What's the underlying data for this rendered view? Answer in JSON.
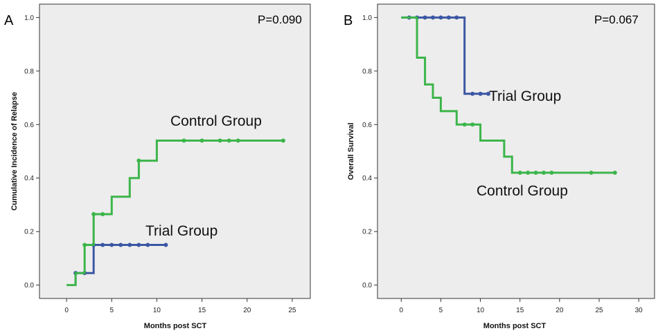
{
  "chart_data": [
    {
      "panel": "A",
      "type": "line",
      "subtype": "kaplan-meier step",
      "p_value": "P=0.090",
      "xlabel": "Months post SCT",
      "ylabel": "Cumulative Incidence of Relapse",
      "xlim": [
        -3,
        27
      ],
      "ylim": [
        -0.05,
        1.05
      ],
      "xticks": [
        0,
        5,
        10,
        15,
        20,
        25
      ],
      "xtick_labels": [
        "0",
        "5",
        "10",
        "15",
        "20",
        "25"
      ],
      "yticks": [
        0,
        0.2,
        0.4,
        0.6,
        0.8,
        1.0
      ],
      "ytick_labels": [
        "0.0",
        "0.2",
        "0.4",
        "0.6",
        "0.8",
        "1.0"
      ],
      "series": [
        {
          "name": "Trial Group",
          "label": "Trial Group",
          "color": "#3b57a3",
          "steps": [
            [
              1,
              0.0
            ],
            [
              1,
              0.045
            ],
            [
              3,
              0.045
            ],
            [
              3,
              0.15
            ],
            [
              11,
              0.15
            ]
          ],
          "censor_x": [
            1,
            2,
            3,
            4,
            5,
            6,
            7,
            8,
            9,
            11
          ]
        },
        {
          "name": "Control Group",
          "label": "Control Group",
          "color": "#3cb54a",
          "steps": [
            [
              0,
              0
            ],
            [
              1,
              0
            ],
            [
              1,
              0.045
            ],
            [
              2,
              0.045
            ],
            [
              2,
              0.15
            ],
            [
              3,
              0.15
            ],
            [
              3,
              0.265
            ],
            [
              5,
              0.265
            ],
            [
              5,
              0.33
            ],
            [
              7,
              0.33
            ],
            [
              7,
              0.4
            ],
            [
              8,
              0.4
            ],
            [
              8,
              0.465
            ],
            [
              10,
              0.465
            ],
            [
              10,
              0.54
            ],
            [
              24,
              0.54
            ]
          ],
          "censor_x": [
            2,
            3,
            4,
            8,
            13,
            15,
            17,
            18,
            19,
            24
          ]
        }
      ]
    },
    {
      "panel": "B",
      "type": "line",
      "subtype": "kaplan-meier step",
      "p_value": "P=0.067",
      "xlabel": "Months post SCT",
      "ylabel": "Overall Survival",
      "xlim": [
        -3,
        32
      ],
      "ylim": [
        -0.05,
        1.05
      ],
      "xticks": [
        0,
        5,
        10,
        15,
        20,
        25,
        30
      ],
      "xtick_labels": [
        "0",
        "5",
        "10",
        "15",
        "20",
        "25",
        "30"
      ],
      "yticks": [
        0,
        0.2,
        0.4,
        0.6,
        0.8,
        1.0
      ],
      "ytick_labels": [
        "0.0",
        "0.2",
        "0.4",
        "0.6",
        "0.8",
        "1.0"
      ],
      "series": [
        {
          "name": "Trial Group",
          "label": "Trial Group",
          "color": "#3b57a3",
          "steps": [
            [
              0,
              1.0
            ],
            [
              8,
              1.0
            ],
            [
              8,
              0.715
            ],
            [
              11,
              0.715
            ]
          ],
          "censor_x": [
            1,
            2,
            3,
            4,
            5,
            6,
            7,
            9,
            10,
            11
          ]
        },
        {
          "name": "Control Group",
          "label": "Control Group",
          "color": "#3cb54a",
          "steps": [
            [
              0,
              1.0
            ],
            [
              2,
              1.0
            ],
            [
              2,
              0.85
            ],
            [
              3,
              0.85
            ],
            [
              3,
              0.75
            ],
            [
              4,
              0.75
            ],
            [
              4,
              0.7
            ],
            [
              5,
              0.7
            ],
            [
              5,
              0.65
            ],
            [
              7,
              0.65
            ],
            [
              7,
              0.6
            ],
            [
              10,
              0.6
            ],
            [
              10,
              0.54
            ],
            [
              13,
              0.54
            ],
            [
              13,
              0.48
            ],
            [
              14,
              0.48
            ],
            [
              14,
              0.42
            ],
            [
              27,
              0.42
            ]
          ],
          "censor_x": [
            8,
            9,
            15,
            16,
            17,
            18,
            19,
            24,
            27
          ]
        }
      ]
    }
  ]
}
